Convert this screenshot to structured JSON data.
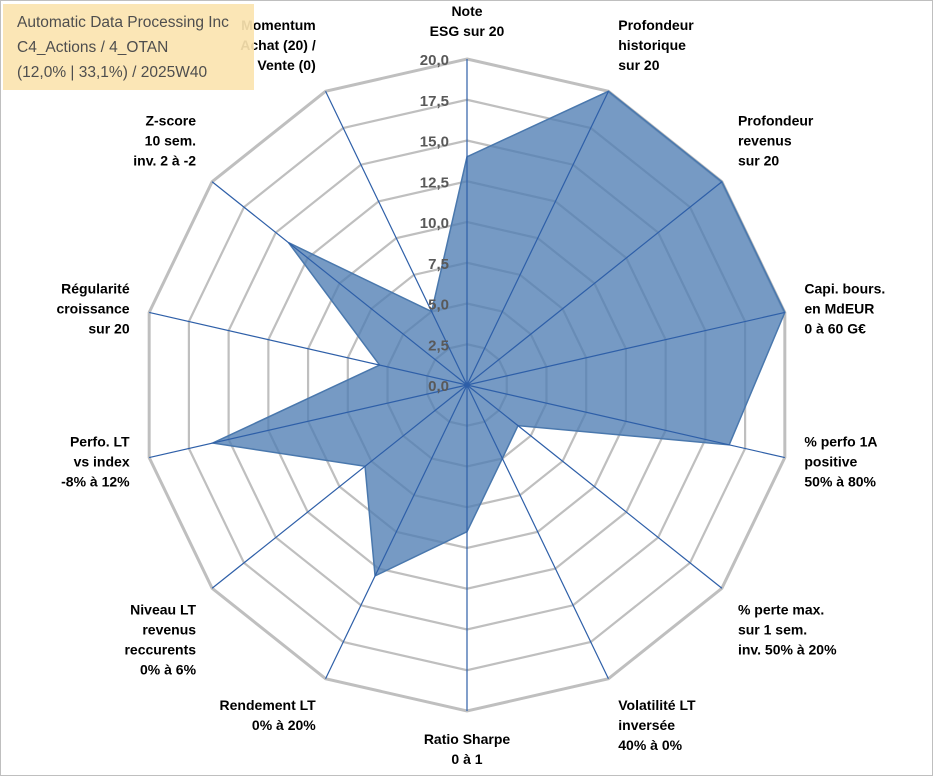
{
  "title_box": {
    "line1": "Automatic Data Processing Inc",
    "line2": "C4_Actions / 4_OTAN",
    "line3": "(12,0% | 33,1%) / 2025W40"
  },
  "colors": {
    "grid": "#bfbfbf",
    "spoke": "#2e5fa8",
    "fill": "#4f7db3",
    "stroke": "#4a78ad",
    "title_bg": "#fbe4b0"
  },
  "chart_data": {
    "type": "radar",
    "rmin": 0,
    "rmax": 20,
    "grid_step": 2.5,
    "tick_labels": [
      "0,0",
      "2,5",
      "5,0",
      "7,5",
      "10,0",
      "12,5",
      "15,0",
      "17,5",
      "20,0"
    ],
    "axes": [
      "Note\nESG sur 20",
      "Profondeur\nhistorique\nsur 20",
      "Profondeur\nrevenus\nsur 20",
      "Capi. bours.\nen MdEUR\n0 à 60 G€",
      "% perfo 1A\npositive\n50% à 80%",
      "% perte max.\nsur 1 sem.\ninv. 50% à 20%",
      "Volatilité LT\ninversée\n40% à 0%",
      "Ratio Sharpe\n0 à 1",
      "Rendement LT\n0% à 20%",
      "Niveau LT\nrevenus\nreccurents\n0% à 6%",
      "Perfo. LT\nvs index\n-8% à 12%",
      "Régularité\ncroissance\nsur 20",
      "Z-score\n10 sem.\ninv. 2 à -2",
      "Momentum\nAchat (20) /\nVente (0)"
    ],
    "series": [
      {
        "values": [
          14.0,
          20.0,
          20.0,
          20.0,
          16.5,
          4.0,
          5.0,
          9.0,
          13.0,
          8.0,
          16.0,
          5.5,
          14.0,
          5.0
        ]
      }
    ]
  }
}
